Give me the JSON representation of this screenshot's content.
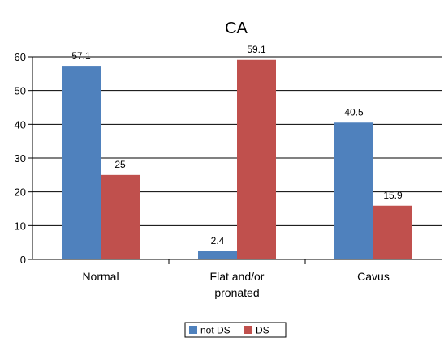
{
  "chart_data": {
    "type": "bar",
    "title": "CA",
    "xlabel": "",
    "ylabel": "",
    "ylim": [
      0,
      60
    ],
    "yticks": [
      0,
      10,
      20,
      30,
      40,
      50,
      60
    ],
    "categories": [
      [
        "Normal"
      ],
      [
        "Flat and/or",
        "pronated"
      ],
      [
        "Cavus"
      ]
    ],
    "series": [
      {
        "name": "not DS",
        "color": "#4f81bd",
        "values": [
          57.1,
          2.4,
          40.5
        ],
        "labels": [
          "57.1",
          "2.4",
          "40.5"
        ]
      },
      {
        "name": "DS",
        "color": "#c0504d",
        "values": [
          25,
          59.1,
          15.9
        ],
        "labels": [
          "25",
          "59.1",
          "15.9"
        ]
      }
    ],
    "grid": true,
    "legend_position": "bottom-center"
  }
}
